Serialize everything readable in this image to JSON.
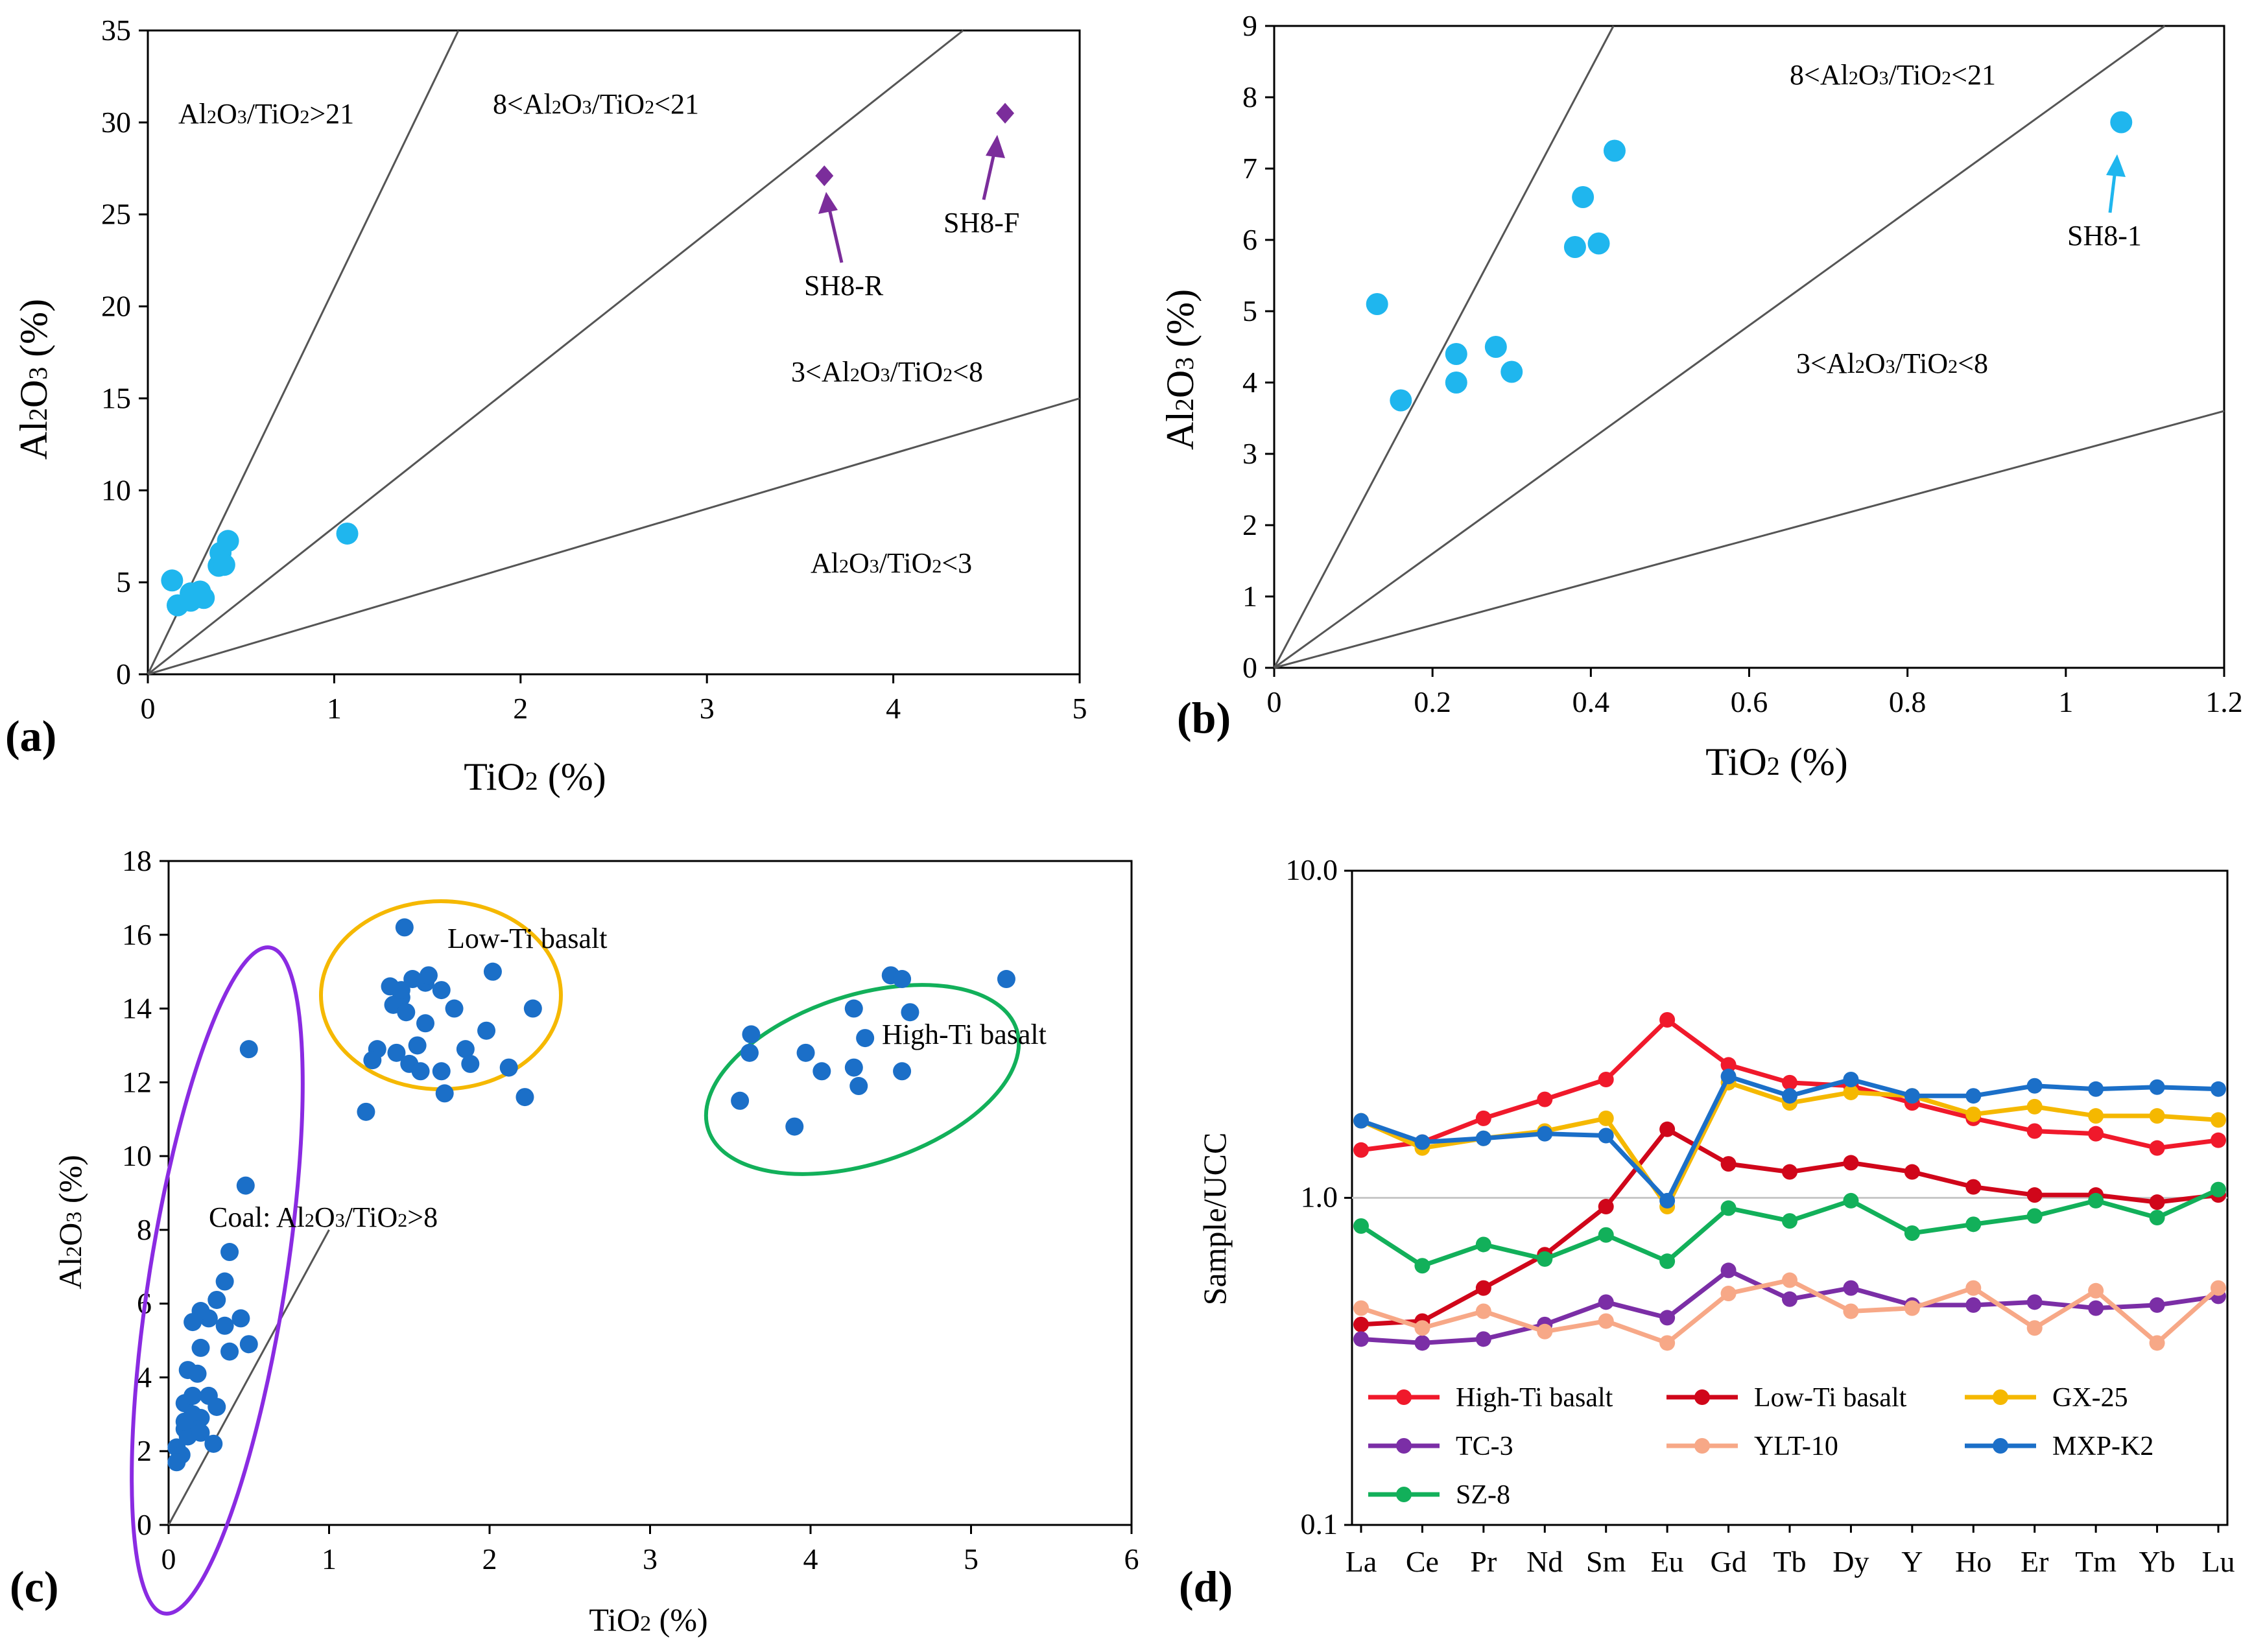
{
  "chart_data": [
    {
      "id": "a",
      "type": "scatter",
      "panel_label": "(a)",
      "xlabel": "TiO2 (%)",
      "ylabel": "Al2O3 (%)",
      "xlim": [
        0,
        5
      ],
      "ylim": [
        0,
        35
      ],
      "xticks": [
        "0",
        "1",
        "2",
        "3",
        "4",
        "5"
      ],
      "yticks": [
        "0",
        "5",
        "10",
        "15",
        "20",
        "25",
        "30",
        "35"
      ],
      "ratio_lines": [
        21,
        8,
        3
      ],
      "region_labels": [
        "Al2O3/TiO2>21",
        "8<Al2O3/TiO2<21",
        "3<Al2O3/TiO2<8",
        "Al2O3/TiO2<3"
      ],
      "series": [
        {
          "name": "coal",
          "marker": "circle",
          "color": "#1fb6ee",
          "points": [
            [
              0.13,
              5.1
            ],
            [
              0.16,
              3.75
            ],
            [
              0.23,
              4.4
            ],
            [
              0.23,
              4.0
            ],
            [
              0.28,
              4.5
            ],
            [
              0.3,
              4.15
            ],
            [
              0.38,
              5.9
            ],
            [
              0.39,
              6.6
            ],
            [
              0.41,
              5.95
            ],
            [
              0.43,
              7.25
            ],
            [
              1.07,
              7.65
            ]
          ]
        },
        {
          "name": "SH8",
          "marker": "diamond",
          "color": "#7b2d9b",
          "points": [
            [
              3.63,
              27.1
            ],
            [
              4.6,
              30.5
            ]
          ]
        }
      ],
      "annotations": [
        {
          "text": "SH8-R",
          "point": [
            3.63,
            27.1
          ]
        },
        {
          "text": "SH8-F",
          "point": [
            4.6,
            30.5
          ]
        }
      ]
    },
    {
      "id": "b",
      "type": "scatter",
      "panel_label": "(b)",
      "xlabel": "TiO2 (%)",
      "ylabel": "Al2O3 (%)",
      "xlim": [
        0,
        1.2
      ],
      "ylim": [
        0,
        9
      ],
      "xticks": [
        "0",
        "0.2",
        "0.4",
        "0.6",
        "0.8",
        "1",
        "1.2"
      ],
      "yticks": [
        "0",
        "1",
        "2",
        "3",
        "4",
        "5",
        "6",
        "7",
        "8",
        "9"
      ],
      "ratio_lines": [
        21,
        8,
        3
      ],
      "region_labels": [
        "8<Al2O3/TiO2<21",
        "3<Al2O3/TiO2<8"
      ],
      "series": [
        {
          "name": "coal",
          "marker": "circle",
          "color": "#1fb6ee",
          "points": [
            [
              0.13,
              5.1
            ],
            [
              0.16,
              3.75
            ],
            [
              0.23,
              4.4
            ],
            [
              0.23,
              4.0
            ],
            [
              0.28,
              4.5
            ],
            [
              0.3,
              4.15
            ],
            [
              0.38,
              5.9
            ],
            [
              0.39,
              6.6
            ],
            [
              0.41,
              5.95
            ],
            [
              0.43,
              7.25
            ],
            [
              1.07,
              7.65
            ]
          ]
        }
      ],
      "annotations": [
        {
          "text": "SH8-1",
          "point": [
            1.07,
            7.65
          ]
        }
      ]
    },
    {
      "id": "c",
      "type": "scatter",
      "panel_label": "(c)",
      "xlabel": "TiO2 (%)",
      "ylabel": "Al2O3 (%)",
      "xlim": [
        0,
        6
      ],
      "ylim": [
        0,
        18
      ],
      "xticks": [
        "0",
        "1",
        "2",
        "3",
        "4",
        "5",
        "6"
      ],
      "yticks": [
        "0",
        "2",
        "4",
        "6",
        "8",
        "10",
        "12",
        "14",
        "16",
        "18"
      ],
      "ratio_line": 8,
      "group_labels": {
        "coal": "Coal: Al2O3/TiO2>8",
        "low": "Low-Ti basalt",
        "high": "High-Ti basalt"
      },
      "groups": [
        {
          "name": "Coal",
          "points": [
            [
              0.5,
              12.9
            ],
            [
              0.48,
              9.2
            ],
            [
              0.38,
              7.4
            ],
            [
              0.35,
              6.6
            ],
            [
              0.3,
              6.1
            ],
            [
              0.25,
              5.6
            ],
            [
              0.2,
              5.8
            ],
            [
              0.15,
              5.5
            ],
            [
              0.35,
              5.4
            ],
            [
              0.45,
              5.6
            ],
            [
              0.5,
              4.9
            ],
            [
              0.38,
              4.7
            ],
            [
              0.2,
              4.8
            ],
            [
              0.12,
              4.2
            ],
            [
              0.18,
              4.1
            ],
            [
              0.25,
              3.5
            ],
            [
              0.3,
              3.2
            ],
            [
              0.1,
              3.3
            ],
            [
              0.15,
              3.0
            ],
            [
              0.2,
              2.9
            ],
            [
              0.1,
              2.6
            ],
            [
              0.18,
              2.6
            ],
            [
              0.05,
              2.1
            ],
            [
              0.12,
              2.4
            ],
            [
              0.08,
              1.9
            ],
            [
              0.05,
              1.7
            ],
            [
              0.28,
              2.2
            ],
            [
              0.1,
              2.8
            ],
            [
              0.2,
              2.5
            ],
            [
              0.15,
              3.5
            ]
          ]
        },
        {
          "name": "Low-Ti basalt",
          "points": [
            [
              1.47,
              16.2
            ],
            [
              1.38,
              14.6
            ],
            [
              1.45,
              14.3
            ],
            [
              1.52,
              14.8
            ],
            [
              1.6,
              14.7
            ],
            [
              1.62,
              14.9
            ],
            [
              1.7,
              14.5
            ],
            [
              1.78,
              14.0
            ],
            [
              2.02,
              15.0
            ],
            [
              2.27,
              14.0
            ],
            [
              1.4,
              14.1
            ],
            [
              1.48,
              13.9
            ],
            [
              1.42,
              12.8
            ],
            [
              1.3,
              12.9
            ],
            [
              1.27,
              12.6
            ],
            [
              1.55,
              13.0
            ],
            [
              1.6,
              13.6
            ],
            [
              1.5,
              12.5
            ],
            [
              1.57,
              12.3
            ],
            [
              1.7,
              12.3
            ],
            [
              1.72,
              11.7
            ],
            [
              1.85,
              12.9
            ],
            [
              1.88,
              12.5
            ],
            [
              1.98,
              13.4
            ],
            [
              2.12,
              12.4
            ],
            [
              2.22,
              11.6
            ],
            [
              1.23,
              11.2
            ],
            [
              1.45,
              14.5
            ]
          ]
        },
        {
          "name": "High-Ti basalt",
          "points": [
            [
              3.63,
              13.3
            ],
            [
              3.62,
              12.8
            ],
            [
              3.56,
              11.5
            ],
            [
              3.9,
              10.8
            ],
            [
              3.97,
              12.8
            ],
            [
              4.07,
              12.3
            ],
            [
              4.27,
              14.0
            ],
            [
              4.27,
              12.4
            ],
            [
              4.3,
              11.9
            ],
            [
              4.34,
              13.2
            ],
            [
              4.5,
              14.9
            ],
            [
              4.57,
              14.8
            ],
            [
              4.62,
              13.9
            ],
            [
              4.57,
              12.3
            ],
            [
              5.22,
              14.8
            ]
          ]
        }
      ],
      "marker_color": "#1b6fc8"
    },
    {
      "id": "d",
      "type": "line",
      "panel_label": "(d)",
      "ylabel": "Sample/UCC",
      "yscale": "log",
      "ylim": [
        0.1,
        10
      ],
      "yticks": [
        "0.1",
        "1.0",
        "10.0"
      ],
      "categories": [
        "La",
        "Ce",
        "Pr",
        "Nd",
        "Sm",
        "Eu",
        "Gd",
        "Tb",
        "Dy",
        "Y",
        "Ho",
        "Er",
        "Tm",
        "Yb",
        "Lu"
      ],
      "series": [
        {
          "name": "High-Ti basalt",
          "color": "#f0192b",
          "values": [
            1.4,
            1.48,
            1.75,
            2.0,
            2.3,
            3.5,
            2.55,
            2.25,
            2.2,
            1.95,
            1.75,
            1.6,
            1.57,
            1.42,
            1.5
          ]
        },
        {
          "name": "Low-Ti basalt",
          "color": "#d0061a",
          "values": [
            0.41,
            0.42,
            0.53,
            0.67,
            0.94,
            1.62,
            1.27,
            1.2,
            1.28,
            1.2,
            1.08,
            1.02,
            1.02,
            0.97,
            1.02
          ]
        },
        {
          "name": "GX-25",
          "color": "#f5b800",
          "values": [
            1.72,
            1.42,
            1.52,
            1.6,
            1.75,
            0.94,
            2.25,
            1.95,
            2.1,
            2.05,
            1.8,
            1.9,
            1.78,
            1.78,
            1.73
          ]
        },
        {
          "name": "TC-3",
          "color": "#7b2ea6",
          "values": [
            0.37,
            0.36,
            0.37,
            0.41,
            0.48,
            0.43,
            0.6,
            0.49,
            0.53,
            0.47,
            0.47,
            0.48,
            0.46,
            0.47,
            0.5
          ]
        },
        {
          "name": "YLT-10",
          "color": "#f7a887",
          "values": [
            0.46,
            0.4,
            0.45,
            0.39,
            0.42,
            0.36,
            0.51,
            0.56,
            0.45,
            0.46,
            0.53,
            0.4,
            0.52,
            0.36,
            0.53
          ]
        },
        {
          "name": "MXP-K2",
          "color": "#1b6fc8",
          "values": [
            1.72,
            1.48,
            1.52,
            1.57,
            1.55,
            0.98,
            2.35,
            2.05,
            2.3,
            2.05,
            2.05,
            2.2,
            2.15,
            2.18,
            2.15
          ]
        },
        {
          "name": "SZ-8",
          "color": "#12b05a",
          "values": [
            0.82,
            0.62,
            0.72,
            0.65,
            0.77,
            0.64,
            0.93,
            0.85,
            0.98,
            0.78,
            0.83,
            0.88,
            0.98,
            0.87,
            1.06
          ]
        }
      ],
      "reference_line": 1.0
    }
  ]
}
